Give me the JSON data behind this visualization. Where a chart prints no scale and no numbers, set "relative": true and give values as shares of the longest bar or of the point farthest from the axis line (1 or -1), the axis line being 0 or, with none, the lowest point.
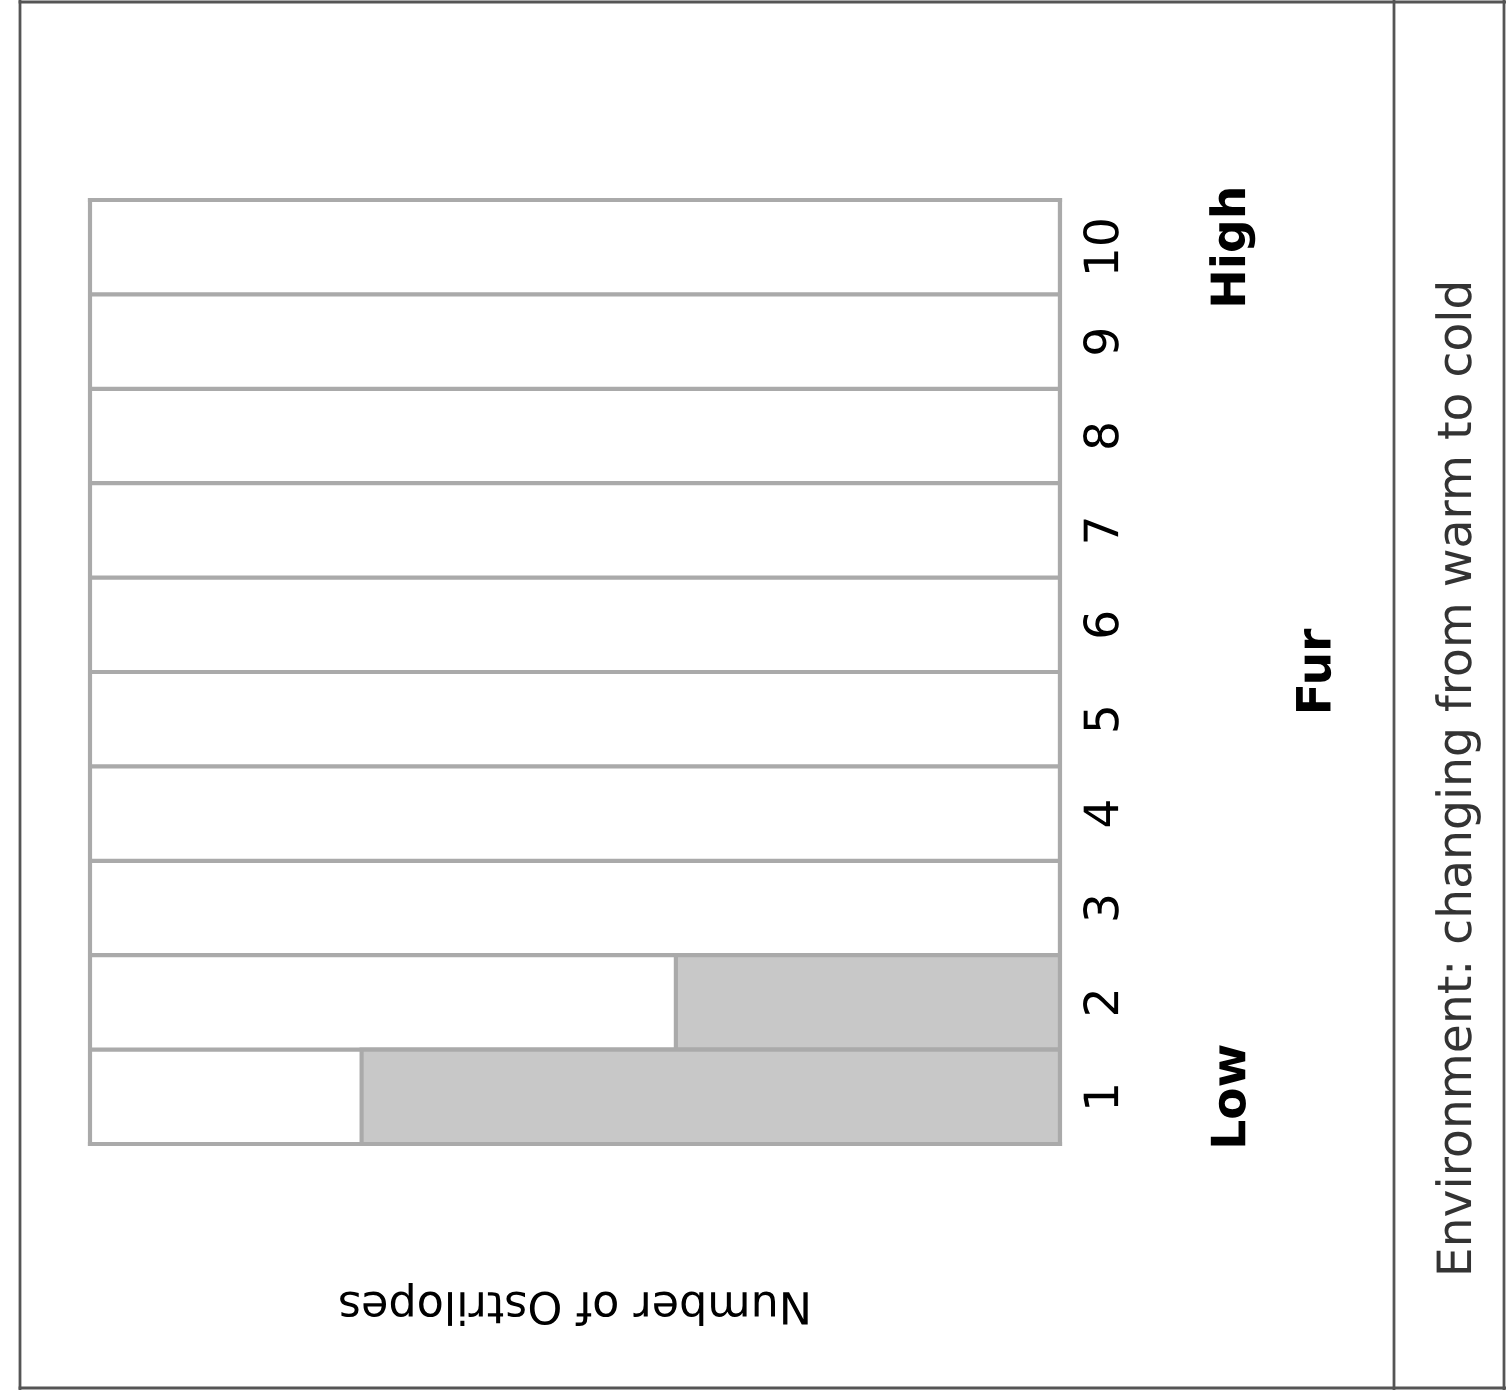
{
  "chart_data": {
    "type": "bar",
    "orientation": "horizontal",
    "relative": true,
    "title": "Environment: changing from warm to cold",
    "xlabel": "Number of Ostrilopes",
    "ylabel": "Fur",
    "categories": [
      "10",
      "9",
      "8",
      "7",
      "6",
      "5",
      "4",
      "3",
      "2",
      "1"
    ],
    "values": [
      0,
      0,
      0,
      0,
      0,
      0,
      0,
      0,
      0.55,
      1
    ],
    "color": "#c8c8c8",
    "annotations": [
      "High",
      "Low"
    ],
    "grid": "y"
  }
}
